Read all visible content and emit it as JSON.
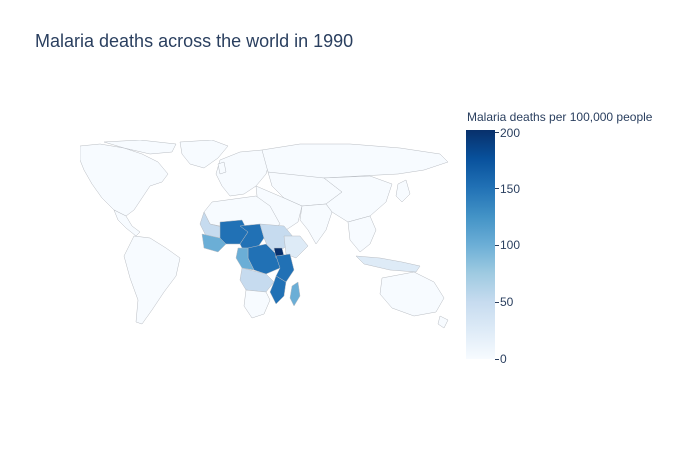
{
  "title": "Malaria deaths across the world in 1990",
  "colorbar": {
    "title": "Malaria deaths per 100,000 people",
    "min": 0,
    "max": 200,
    "ticks": [
      "0",
      "50",
      "100",
      "150",
      "200"
    ],
    "colorscale": "Blues"
  },
  "colors": {
    "none": "#f7fbff",
    "low": "#deebf7",
    "lowmid": "#c6dbef",
    "mid": "#6baed6",
    "high": "#2171b5",
    "veryhigh": "#08306b",
    "border": "#b8bcc2"
  }
}
